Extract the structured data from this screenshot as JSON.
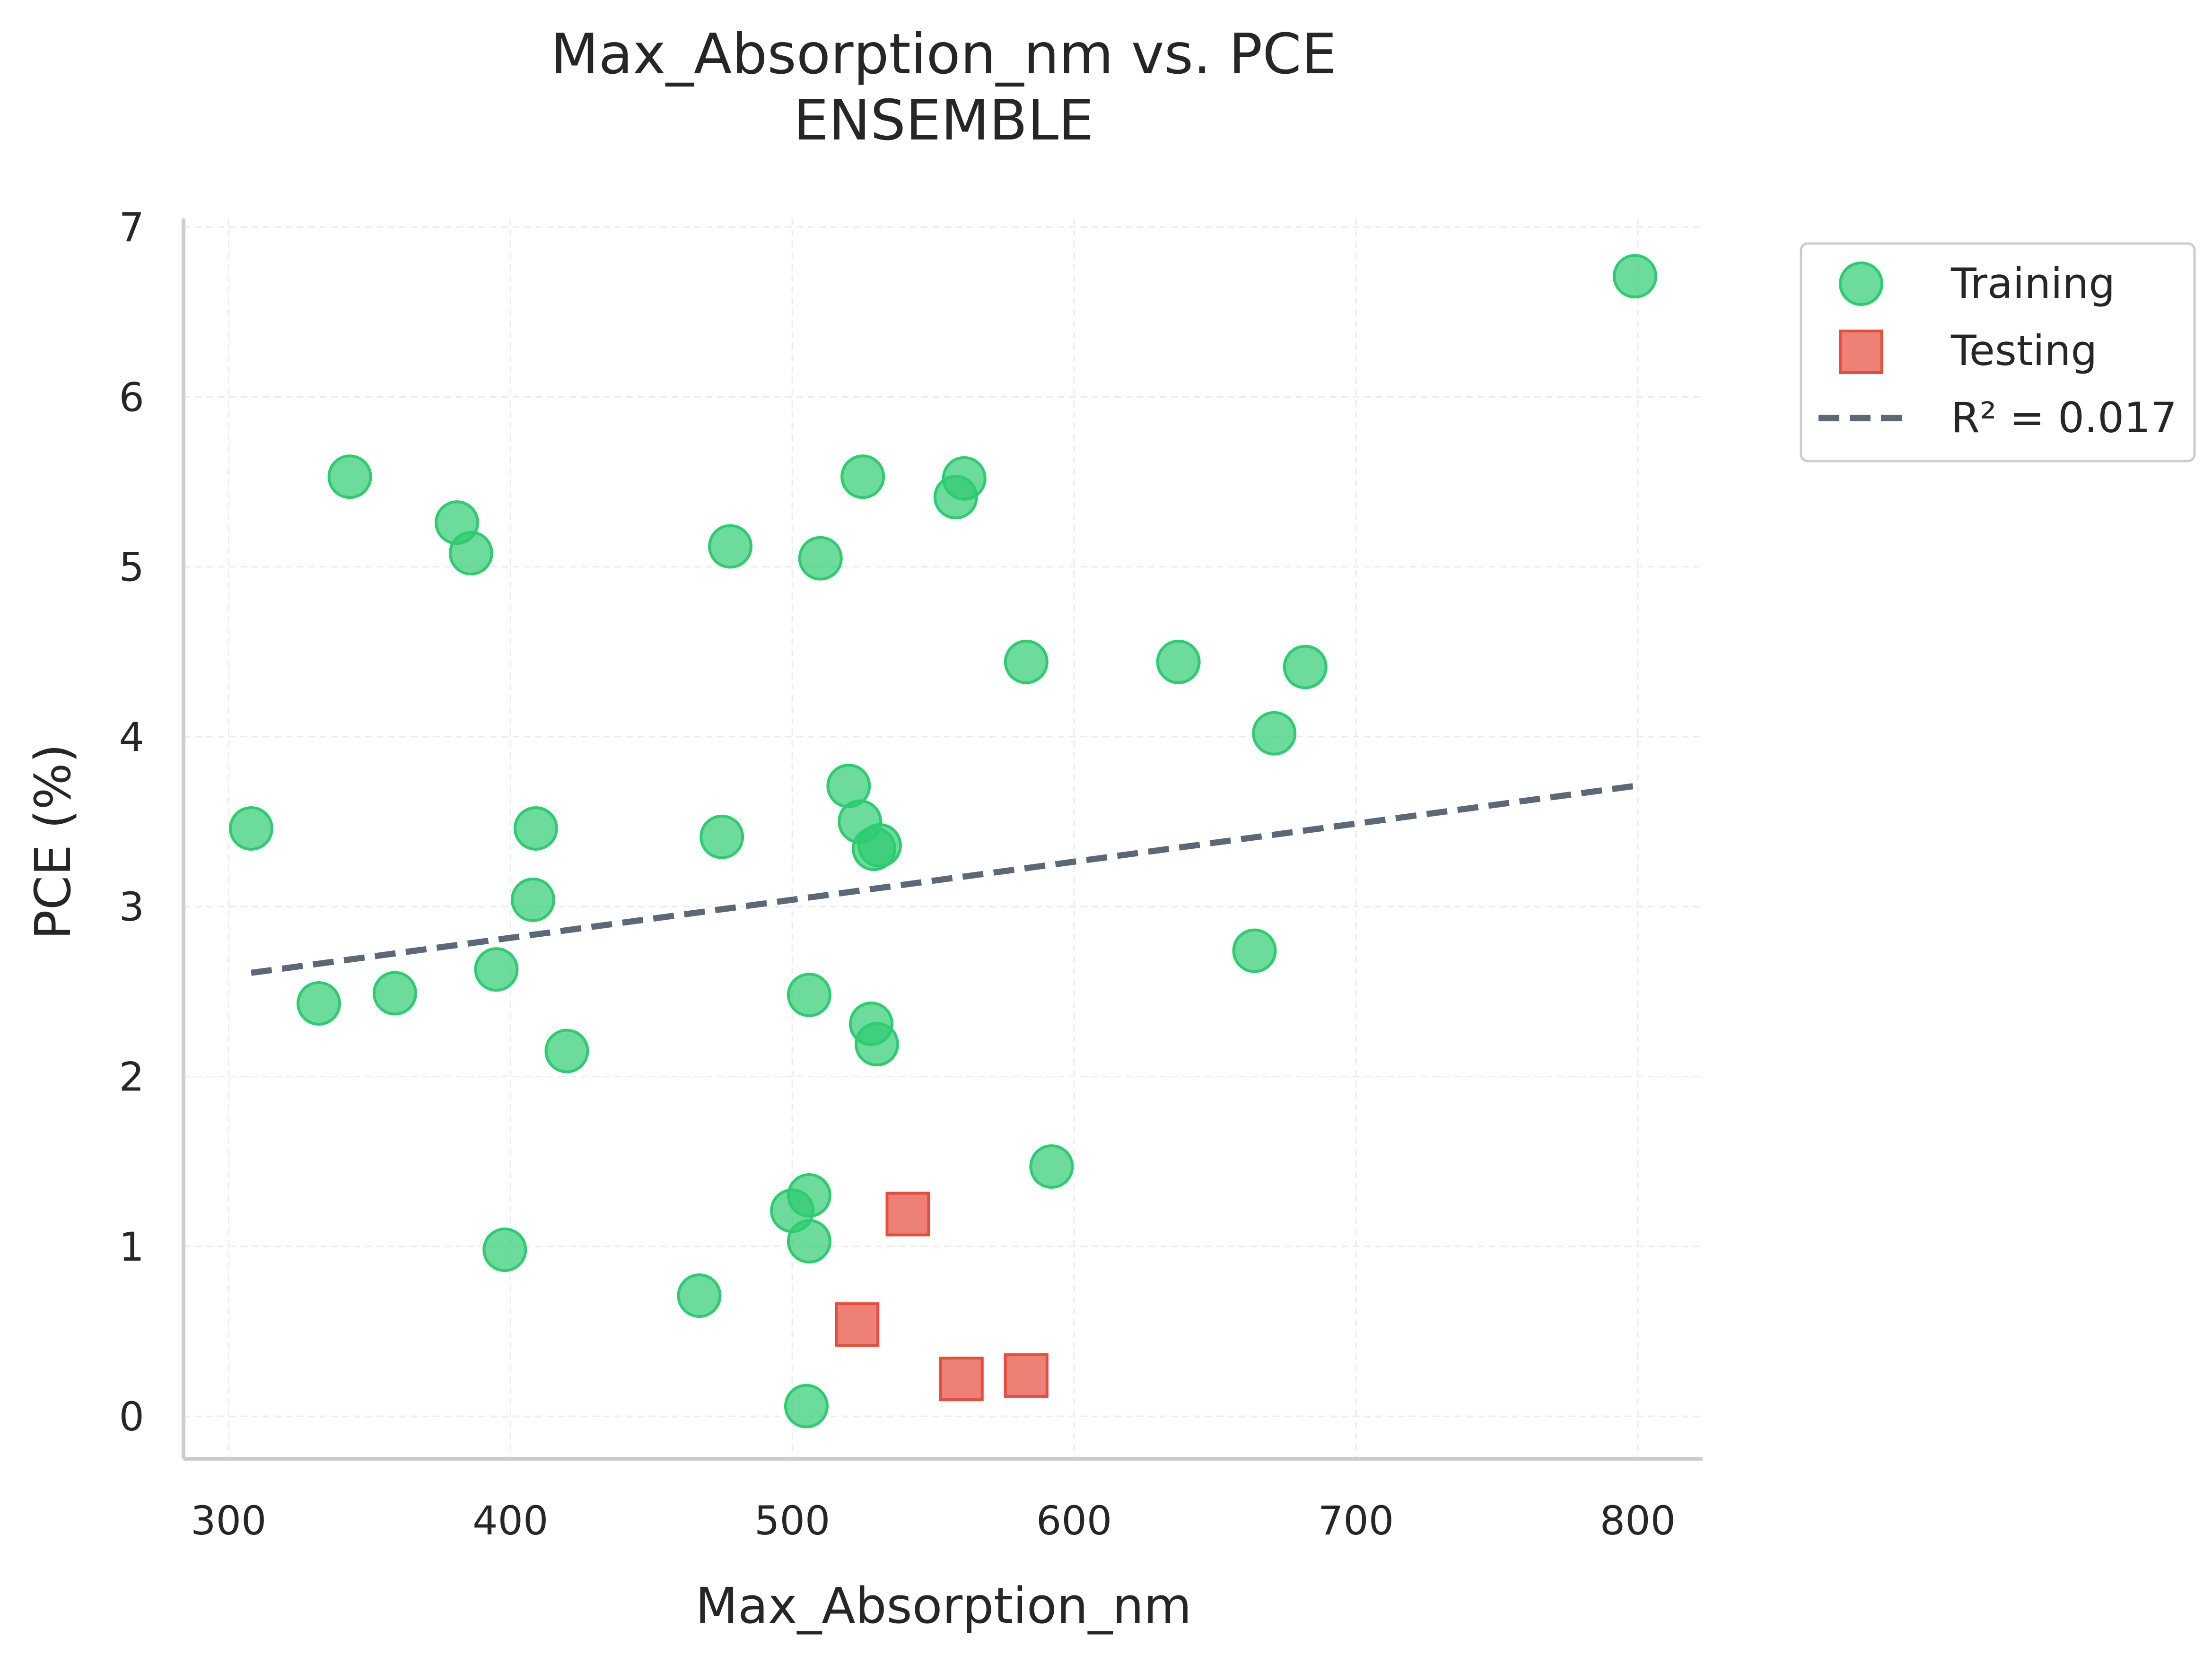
{
  "chart_data": {
    "type": "scatter",
    "title": "Max_Absorption_nm vs. PCE",
    "subtitle": "ENSEMBLE",
    "xlabel": "Max_Absorption_nm",
    "ylabel": "PCE (%)",
    "xlim": [
      284,
      823
    ],
    "ylim": [
      -0.25,
      7.05
    ],
    "xticks": [
      300,
      400,
      500,
      600,
      700,
      800
    ],
    "yticks": [
      0,
      1,
      2,
      3,
      4,
      5,
      6,
      7
    ],
    "grid": true,
    "legend_position": "outside-top-right",
    "series": [
      {
        "name": "Training",
        "marker": "circle",
        "color": "#2ecc71",
        "points": [
          [
            308,
            3.46
          ],
          [
            332,
            2.43
          ],
          [
            343,
            5.53
          ],
          [
            359,
            2.49
          ],
          [
            381,
            5.26
          ],
          [
            386,
            5.08
          ],
          [
            395,
            2.63
          ],
          [
            398,
            0.98
          ],
          [
            408,
            3.04
          ],
          [
            409,
            3.46
          ],
          [
            420,
            2.15
          ],
          [
            467,
            0.71
          ],
          [
            475,
            3.41
          ],
          [
            478,
            5.12
          ],
          [
            500,
            1.21
          ],
          [
            505,
            0.06
          ],
          [
            506,
            1.03
          ],
          [
            506,
            1.3
          ],
          [
            506,
            2.48
          ],
          [
            510,
            5.05
          ],
          [
            520,
            3.71
          ],
          [
            524,
            3.5
          ],
          [
            525,
            5.53
          ],
          [
            528,
            2.31
          ],
          [
            529,
            3.34
          ],
          [
            530,
            2.19
          ],
          [
            531,
            3.36
          ],
          [
            558,
            5.41
          ],
          [
            561,
            5.52
          ],
          [
            583,
            4.44
          ],
          [
            592,
            1.47
          ],
          [
            637,
            4.44
          ],
          [
            664,
            2.74
          ],
          [
            671,
            4.02
          ],
          [
            682,
            4.41
          ],
          [
            799,
            6.71
          ]
        ]
      },
      {
        "name": "Testing",
        "marker": "square",
        "color": "#e74c3c",
        "points": [
          [
            523,
            0.54
          ],
          [
            541,
            1.19
          ],
          [
            560,
            0.22
          ],
          [
            583,
            0.24
          ]
        ]
      }
    ],
    "trend_line": {
      "name": "R² = 0.017",
      "style": "dashed",
      "color": "#5a6878",
      "x": [
        308,
        799
      ],
      "y": [
        2.61,
        3.71
      ]
    }
  }
}
